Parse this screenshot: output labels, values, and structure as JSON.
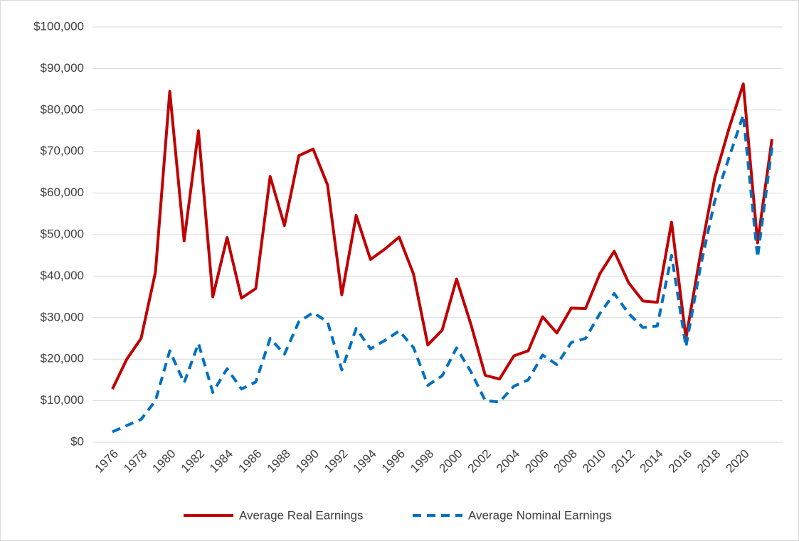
{
  "chart_data": {
    "type": "line",
    "categories": [
      "1976",
      null,
      "1978",
      null,
      "1980",
      null,
      "1982",
      null,
      "1984",
      null,
      "1986",
      null,
      "1988",
      null,
      "1990",
      null,
      "1992",
      null,
      "1994",
      null,
      "1996",
      null,
      "1998",
      null,
      "2000",
      null,
      "2002",
      null,
      "2004",
      null,
      "2006",
      null,
      "2008",
      null,
      "2010",
      null,
      "2012",
      null,
      "2014",
      null,
      "2016",
      null,
      "2018",
      null,
      "2020",
      null,
      null
    ],
    "series": [
      {
        "name": "Average Real Earnings",
        "color": "#c00000",
        "dash": "solid",
        "values": [
          12800,
          20000,
          25000,
          41000,
          84500,
          48500,
          75000,
          35000,
          49300,
          34700,
          37000,
          64000,
          52200,
          69000,
          70600,
          62000,
          35500,
          54600,
          44000,
          46500,
          49400,
          40500,
          23400,
          27000,
          39300,
          28400,
          16100,
          15200,
          20800,
          22000,
          30200,
          26300,
          32300,
          32200,
          40600,
          46000,
          38400,
          34000,
          33700,
          53000,
          25000,
          45000,
          63500,
          75500,
          86300,
          48000,
          73000
        ]
      },
      {
        "name": "Average Nominal Earnings",
        "color": "#0070c0",
        "dash": "dashed",
        "values": [
          2500,
          4000,
          5500,
          10000,
          22000,
          14300,
          23800,
          12000,
          17700,
          12800,
          14500,
          25000,
          21200,
          29000,
          31200,
          29000,
          17400,
          27400,
          22500,
          24500,
          26800,
          22800,
          13700,
          16000,
          22700,
          17000,
          10000,
          9700,
          13500,
          15000,
          21000,
          18700,
          24000,
          25000,
          31000,
          35800,
          31000,
          27600,
          28000,
          45000,
          23000,
          42000,
          58000,
          68500,
          78800,
          44500,
          71000
        ]
      }
    ],
    "ylim": [
      0,
      100000
    ],
    "yticks": [
      {
        "value": 0,
        "label": "$0"
      },
      {
        "value": 10000,
        "label": "$10,000"
      },
      {
        "value": 20000,
        "label": "$20,000"
      },
      {
        "value": 30000,
        "label": "$30,000"
      },
      {
        "value": 40000,
        "label": "$40,000"
      },
      {
        "value": 50000,
        "label": "$50,000"
      },
      {
        "value": 60000,
        "label": "$60,000"
      },
      {
        "value": 70000,
        "label": "$70,000"
      },
      {
        "value": 80000,
        "label": "$80,000"
      },
      {
        "value": 90000,
        "label": "$90,000"
      },
      {
        "value": 100000,
        "label": "$100,000"
      }
    ],
    "grid": true,
    "legend": "bottom"
  }
}
